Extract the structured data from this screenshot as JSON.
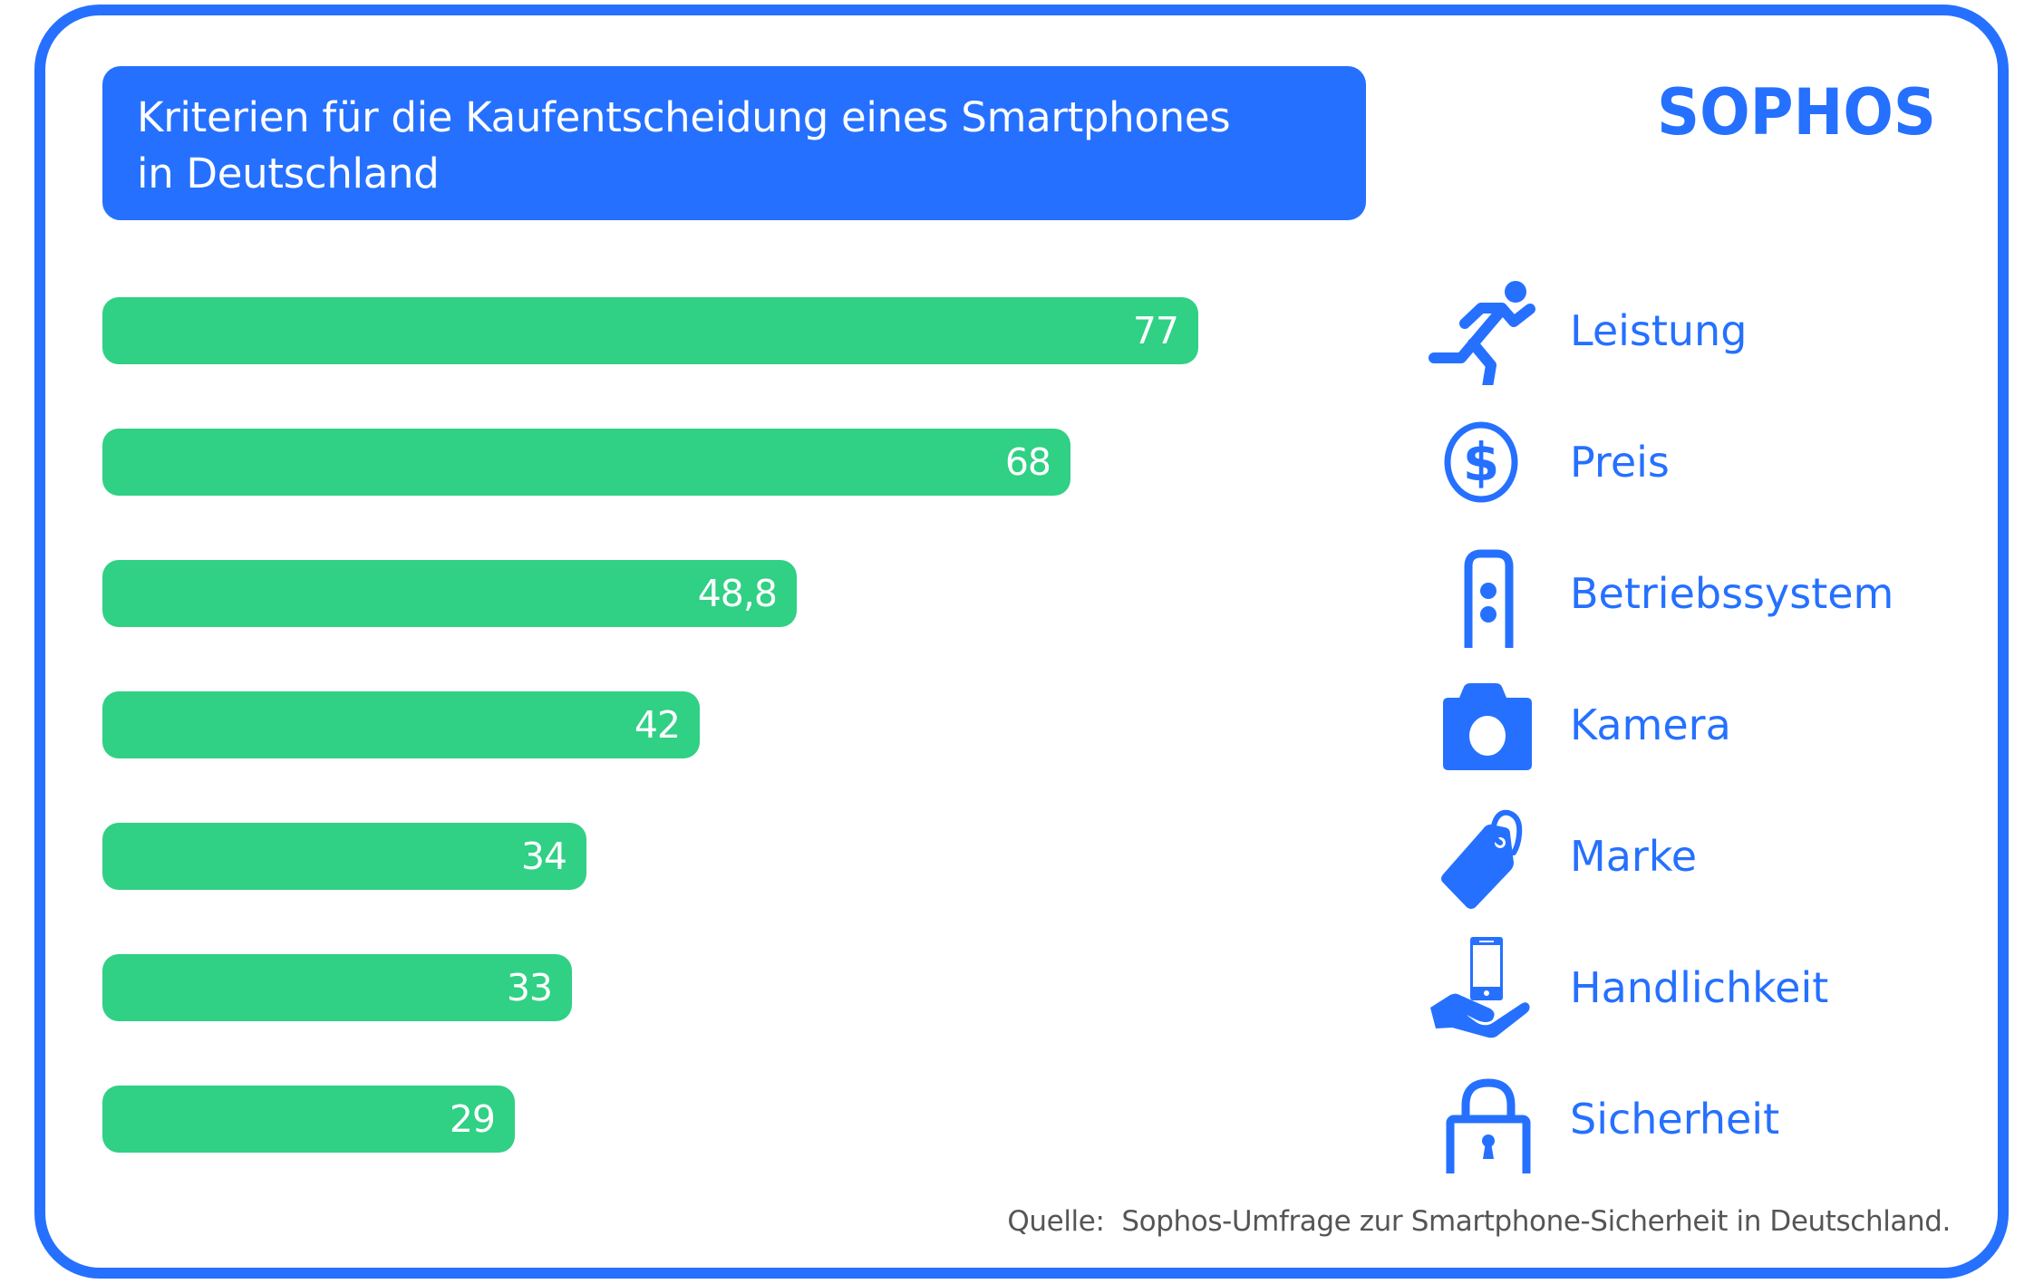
{
  "colors": {
    "brand_blue": "#2570FF",
    "bar_green": "#30D085",
    "source_text": "#555555",
    "white": "#FFFFFF"
  },
  "header": {
    "title_lines": [
      "Kriterien für die Kaufentscheidung eines Smartphones",
      "in Deutschland"
    ],
    "logo_text": "SOPHOS"
  },
  "chart_data": {
    "type": "bar",
    "orientation": "horizontal",
    "title": "Kriterien für die Kaufentscheidung eines Smartphones in Deutschland",
    "xlabel": "",
    "ylabel": "",
    "grid": false,
    "xlim": [
      0,
      77
    ],
    "categories": [
      "Leistung",
      "Preis",
      "Betriebssystem",
      "Kamera",
      "Marke",
      "Handlichkeit",
      "Sicherheit"
    ],
    "values": [
      77,
      68,
      48.8,
      42,
      34,
      33,
      29
    ],
    "value_labels": [
      "77",
      "68",
      "48,8",
      "42",
      "34",
      "33",
      "29"
    ],
    "icons": [
      "running-person-icon",
      "dollar-coin-icon",
      "phone-os-icon",
      "camera-icon",
      "price-tag-icon",
      "hand-holding-phone-icon",
      "padlock-icon"
    ],
    "legend_placement": "right",
    "source": "Quelle:  Sophos-Umfrage zur Smartphone-Sicherheit in Deutschland."
  }
}
